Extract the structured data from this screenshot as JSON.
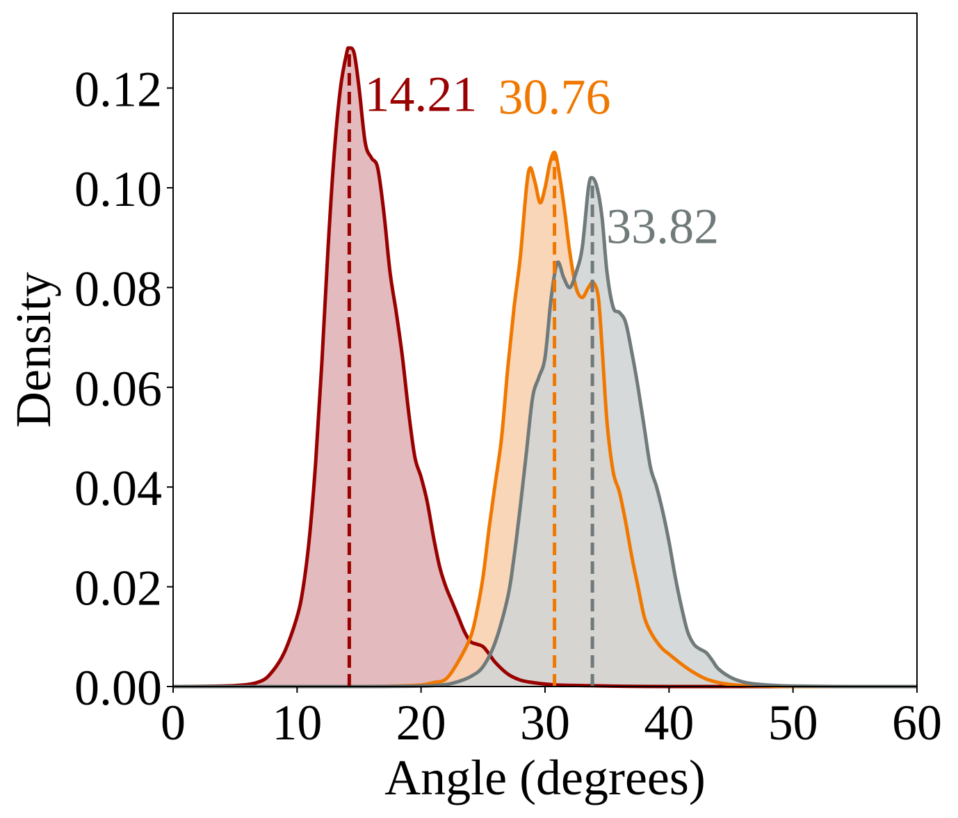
{
  "chart_data": {
    "type": "area",
    "title": "",
    "xlabel": "Angle (degrees)",
    "ylabel": "Density",
    "xlim": [
      0,
      60
    ],
    "ylim": [
      0,
      0.135
    ],
    "x_ticks": [
      "0",
      "10",
      "20",
      "30",
      "40",
      "50",
      "60"
    ],
    "y_ticks": [
      "0.00",
      "0.02",
      "0.04",
      "0.06",
      "0.08",
      "0.10",
      "0.12"
    ],
    "grid": false,
    "legend": "none",
    "series": [
      {
        "color": "#990000",
        "fill": "#e0b3b6",
        "median": 14.21,
        "median_label": "14.21",
        "points": [
          [
            0,
            0
          ],
          [
            5,
            0.0002
          ],
          [
            7,
            0.001
          ],
          [
            8,
            0.003
          ],
          [
            9,
            0.007
          ],
          [
            10,
            0.014
          ],
          [
            10.5,
            0.02
          ],
          [
            11,
            0.03
          ],
          [
            11.5,
            0.045
          ],
          [
            12,
            0.065
          ],
          [
            12.5,
            0.088
          ],
          [
            13,
            0.107
          ],
          [
            13.5,
            0.12
          ],
          [
            14,
            0.127
          ],
          [
            14.2,
            0.128
          ],
          [
            14.6,
            0.127
          ],
          [
            15,
            0.12
          ],
          [
            15.5,
            0.109
          ],
          [
            16,
            0.106
          ],
          [
            16.5,
            0.104
          ],
          [
            17,
            0.095
          ],
          [
            17.5,
            0.083
          ],
          [
            18,
            0.075
          ],
          [
            18.5,
            0.066
          ],
          [
            19,
            0.055
          ],
          [
            19.5,
            0.046
          ],
          [
            20,
            0.042
          ],
          [
            20.5,
            0.037
          ],
          [
            21,
            0.03
          ],
          [
            21.5,
            0.024
          ],
          [
            22,
            0.02
          ],
          [
            22.5,
            0.017
          ],
          [
            23,
            0.014
          ],
          [
            23.5,
            0.011
          ],
          [
            24,
            0.009
          ],
          [
            24.5,
            0.0085
          ],
          [
            25,
            0.008
          ],
          [
            25.5,
            0.0065
          ],
          [
            26,
            0.0048
          ],
          [
            27,
            0.0025
          ],
          [
            28,
            0.0013
          ],
          [
            29,
            0.0008
          ],
          [
            30,
            0.0005
          ],
          [
            31,
            0.0003
          ],
          [
            33,
            0.0002
          ],
          [
            35,
            0.0001
          ],
          [
            40,
            0
          ],
          [
            60,
            0
          ]
        ]
      },
      {
        "color": "#f07800",
        "fill": "#f9d1b0",
        "median": 30.76,
        "median_label": "30.76",
        "points": [
          [
            0,
            0
          ],
          [
            15,
            0
          ],
          [
            18,
            0.0001
          ],
          [
            20,
            0.0003
          ],
          [
            21,
            0.0008
          ],
          [
            22,
            0.0015
          ],
          [
            23,
            0.005
          ],
          [
            24,
            0.01
          ],
          [
            24.5,
            0.015
          ],
          [
            25,
            0.022
          ],
          [
            25.5,
            0.032
          ],
          [
            26,
            0.041
          ],
          [
            26.5,
            0.05
          ],
          [
            27,
            0.064
          ],
          [
            27.5,
            0.076
          ],
          [
            28,
            0.086
          ],
          [
            28.5,
            0.1
          ],
          [
            28.8,
            0.104
          ],
          [
            29.2,
            0.101
          ],
          [
            29.6,
            0.097
          ],
          [
            30,
            0.1
          ],
          [
            30.4,
            0.105
          ],
          [
            30.8,
            0.107
          ],
          [
            31.2,
            0.102
          ],
          [
            31.6,
            0.095
          ],
          [
            32,
            0.087
          ],
          [
            32.5,
            0.08
          ],
          [
            33,
            0.078
          ],
          [
            33.5,
            0.08
          ],
          [
            33.9,
            0.081
          ],
          [
            34.3,
            0.078
          ],
          [
            34.6,
            0.068
          ],
          [
            35,
            0.053
          ],
          [
            35.5,
            0.043
          ],
          [
            36,
            0.039
          ],
          [
            36.5,
            0.033
          ],
          [
            37,
            0.026
          ],
          [
            37.5,
            0.02
          ],
          [
            38,
            0.014
          ],
          [
            38.5,
            0.011
          ],
          [
            39,
            0.009
          ],
          [
            39.5,
            0.0075
          ],
          [
            40,
            0.0065
          ],
          [
            41,
            0.0045
          ],
          [
            42,
            0.0028
          ],
          [
            43,
            0.0015
          ],
          [
            44,
            0.0008
          ],
          [
            45,
            0.0004
          ],
          [
            46,
            0.0002
          ],
          [
            48,
            0.0001
          ],
          [
            50,
            0
          ],
          [
            60,
            0
          ]
        ]
      },
      {
        "color": "#707a7a",
        "fill": "#d2d5d5",
        "median": 33.82,
        "median_label": "33.82",
        "points": [
          [
            0,
            0
          ],
          [
            15,
            0
          ],
          [
            20,
            0.0001
          ],
          [
            22,
            0.0004
          ],
          [
            23,
            0.001
          ],
          [
            24,
            0.002
          ],
          [
            25,
            0.004
          ],
          [
            26,
            0.009
          ],
          [
            27,
            0.018
          ],
          [
            27.5,
            0.026
          ],
          [
            28,
            0.036
          ],
          [
            28.5,
            0.047
          ],
          [
            29,
            0.058
          ],
          [
            29.5,
            0.062
          ],
          [
            30,
            0.066
          ],
          [
            30.5,
            0.078
          ],
          [
            31,
            0.085
          ],
          [
            31.5,
            0.082
          ],
          [
            32,
            0.08
          ],
          [
            32.5,
            0.083
          ],
          [
            33,
            0.088
          ],
          [
            33.5,
            0.1
          ],
          [
            33.8,
            0.102
          ],
          [
            34.2,
            0.1
          ],
          [
            34.6,
            0.094
          ],
          [
            35,
            0.083
          ],
          [
            35.5,
            0.076
          ],
          [
            36,
            0.075
          ],
          [
            36.5,
            0.073
          ],
          [
            37,
            0.067
          ],
          [
            37.5,
            0.06
          ],
          [
            38,
            0.052
          ],
          [
            38.5,
            0.044
          ],
          [
            39,
            0.04
          ],
          [
            39.5,
            0.035
          ],
          [
            40,
            0.029
          ],
          [
            40.5,
            0.022
          ],
          [
            41,
            0.016
          ],
          [
            41.5,
            0.011
          ],
          [
            42,
            0.0085
          ],
          [
            42.5,
            0.0075
          ],
          [
            43,
            0.0068
          ],
          [
            43.5,
            0.0052
          ],
          [
            44,
            0.0035
          ],
          [
            45,
            0.0018
          ],
          [
            46,
            0.0009
          ],
          [
            47,
            0.0005
          ],
          [
            48,
            0.0003
          ],
          [
            50,
            0.0001
          ],
          [
            55,
            0
          ],
          [
            60,
            0
          ]
        ]
      }
    ]
  }
}
